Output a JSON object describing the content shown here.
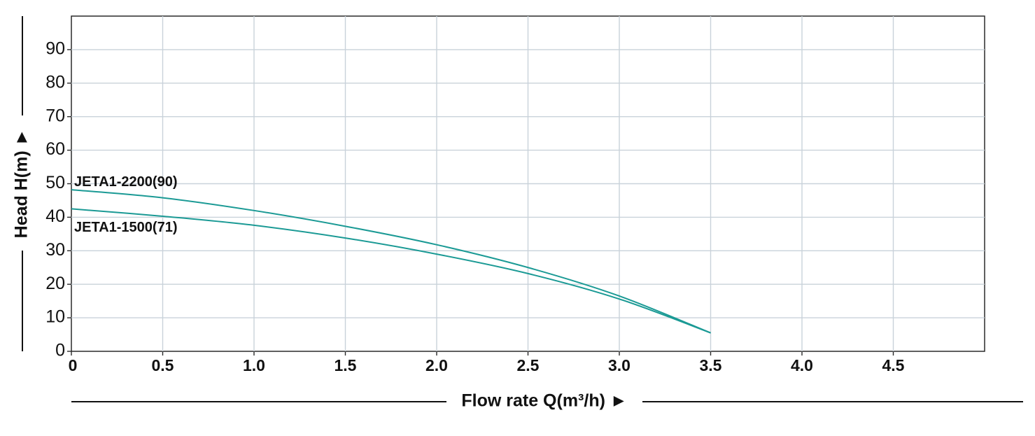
{
  "chart_data": {
    "type": "line",
    "xlabel": "Flow rate Q(m³/h) ►",
    "ylabel": "Head H(m) ►",
    "xlim": [
      0,
      5
    ],
    "ylim": [
      0,
      90
    ],
    "grid": true,
    "x_ticks": [
      "0",
      "0.5",
      "1.0",
      "1.5",
      "2.0",
      "2.5",
      "3.0",
      "3.5",
      "4.0",
      "4.5"
    ],
    "y_ticks": [
      "0",
      "10",
      "20",
      "30",
      "40",
      "50",
      "60",
      "70",
      "80",
      "90"
    ],
    "series": [
      {
        "name": "JETA1-2200(90)",
        "color": "#1b9a95",
        "x": [
          0,
          0.5,
          1.0,
          1.5,
          2.0,
          2.5,
          3.0,
          3.5
        ],
        "y": [
          48.2,
          45.8,
          42.0,
          37.3,
          31.8,
          25.0,
          16.5,
          5.5
        ]
      },
      {
        "name": "JETA1-1500(71)",
        "color": "#1b9a95",
        "x": [
          0,
          0.5,
          1.0,
          1.5,
          2.0,
          2.5,
          3.0,
          3.5
        ],
        "y": [
          42.5,
          40.3,
          37.6,
          33.8,
          29.0,
          23.2,
          15.6,
          5.5
        ]
      }
    ]
  }
}
